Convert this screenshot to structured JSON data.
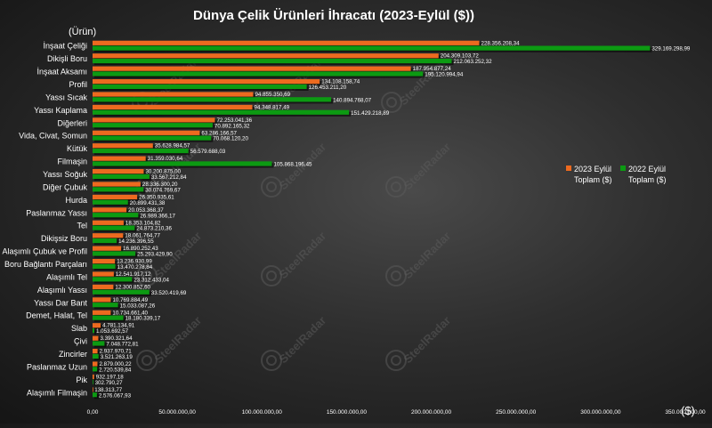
{
  "chart_data": {
    "type": "bar",
    "orientation": "horizontal",
    "title": "Dünya Çelik Ürünleri İhracatı (2023-Eylül ($))",
    "ylabel": "(Ürün)",
    "xlabel": "($)",
    "xlim": [
      0,
      350000000
    ],
    "x_ticks": [
      "0,00",
      "50.000.000,00",
      "100.000.000,00",
      "150.000.000,00",
      "200.000.000,00",
      "250.000.000,00",
      "300.000.000,00",
      "350.000.000,00"
    ],
    "legend_position": "right",
    "colors": {
      "2023": "#ed6a1f",
      "2022": "#0c9a12"
    },
    "categories": [
      "İnşaat Çeliği",
      "Dikişli Boru",
      "İnşaat Aksamı",
      "Profil",
      "Yassı Sıcak",
      "Yassı Kaplama",
      "Diğerleri",
      "Vida, Civat, Somun",
      "Kütük",
      "Filmaşin",
      "Yassı Soğuk",
      "Diğer Çubuk",
      "Hurda",
      "Paslanmaz Yassı",
      "Tel",
      "Dikişsiz Boru",
      "Alaşımlı Çubuk ve Profil",
      "Boru Bağlantı Parçaları",
      "Alaşımlı Tel",
      "Alaşımlı Yassı",
      "Yassı Dar Bant",
      "Demet, Halat, Tel",
      "Slab",
      "Çivi",
      "Zincirler",
      "Paslanmaz Uzun",
      "Pik",
      "Alaşımlı Filmaşin"
    ],
    "series": [
      {
        "name": "2023 Eylül Toplam ($)",
        "values": [
          228356208.34,
          204309103.72,
          187954877.24,
          134108158.74,
          94855350.69,
          94348817.49,
          72253041.36,
          63286166.57,
          35628984.57,
          31359030.64,
          30200875.0,
          28336300.2,
          26350935.61,
          20053368.37,
          18353104.82,
          18061764.77,
          16890252.43,
          13236930.99,
          12541917.12,
          12300852.6,
          10769884.49,
          10734661.4,
          4781134.91,
          3390321.64,
          2937970.71,
          2879000.22,
          932197.18,
          138313.77
        ],
        "labels": [
          "228.356.208,34",
          "204.309.103,72",
          "187.954.877,24",
          "134.108.158,74",
          "94.855.350,69",
          "94.348.817,49",
          "72.253.041,36",
          "63.286.166,57",
          "35.628.984,57",
          "31.359.030,64",
          "30.200.875,00",
          "28.336.300,20",
          "26.350.935,61",
          "20.053.368,37",
          "18.353.104,82",
          "18.061.764,77",
          "16.890.252,43",
          "13.236.930,99",
          "12.541.917,12",
          "12.300.852,60",
          "10.769.884,49",
          "10.734.661,40",
          "4.781.134,91",
          "3.390.321,64",
          "2.937.970,71",
          "2.879.000,22",
          "932.197,18",
          "138.313,77"
        ]
      },
      {
        "name": "2022 Eylül Toplam ($)",
        "values": [
          329169298.99,
          212063252.32,
          195120994.94,
          126453211.2,
          140894768.07,
          151429218.89,
          70892165.32,
          70068120.2,
          56579688.03,
          105868196.45,
          33567212.84,
          30074769.67,
          20899431.38,
          26989366.17,
          24873210.36,
          14236396.55,
          25293429.9,
          13470278.84,
          23312433.04,
          33520419.69,
          15033087.26,
          18180339.17,
          1053692.57,
          7048772.81,
          3521263.19,
          2720539.84,
          302790.27,
          2576067.93
        ],
        "labels": [
          "329.169.298,99",
          "212.063.252,32",
          "195.120.994,94",
          "126.453.211,20",
          "140.894.768,07",
          "151.429.218,89",
          "70.892.165,32",
          "70.068.120,20",
          "56.579.688,03",
          "105.868.196,45",
          "33.567.212,84",
          "30.074.769,67",
          "20.899.431,38",
          "26.989.366,17",
          "24.873.210,36",
          "14.236.396,55",
          "25.293.429,90",
          "13.470.278,84",
          "23.312.433,04",
          "33.520.419,69",
          "15.033.087,26",
          "18.180.339,17",
          "1.053.692,57",
          "7.048.772,81",
          "3.521.263,19",
          "2.720.539,84",
          "302.790,27",
          "2.576.067,93"
        ]
      }
    ],
    "legend": [
      {
        "line1": "2023 Eylül",
        "line2": "Toplam ($)",
        "color": "#ed6a1f"
      },
      {
        "line1": "2022 Eylül",
        "line2": "Toplam ($)",
        "color": "#0c9a12"
      }
    ],
    "watermark": "SteelRadar"
  }
}
